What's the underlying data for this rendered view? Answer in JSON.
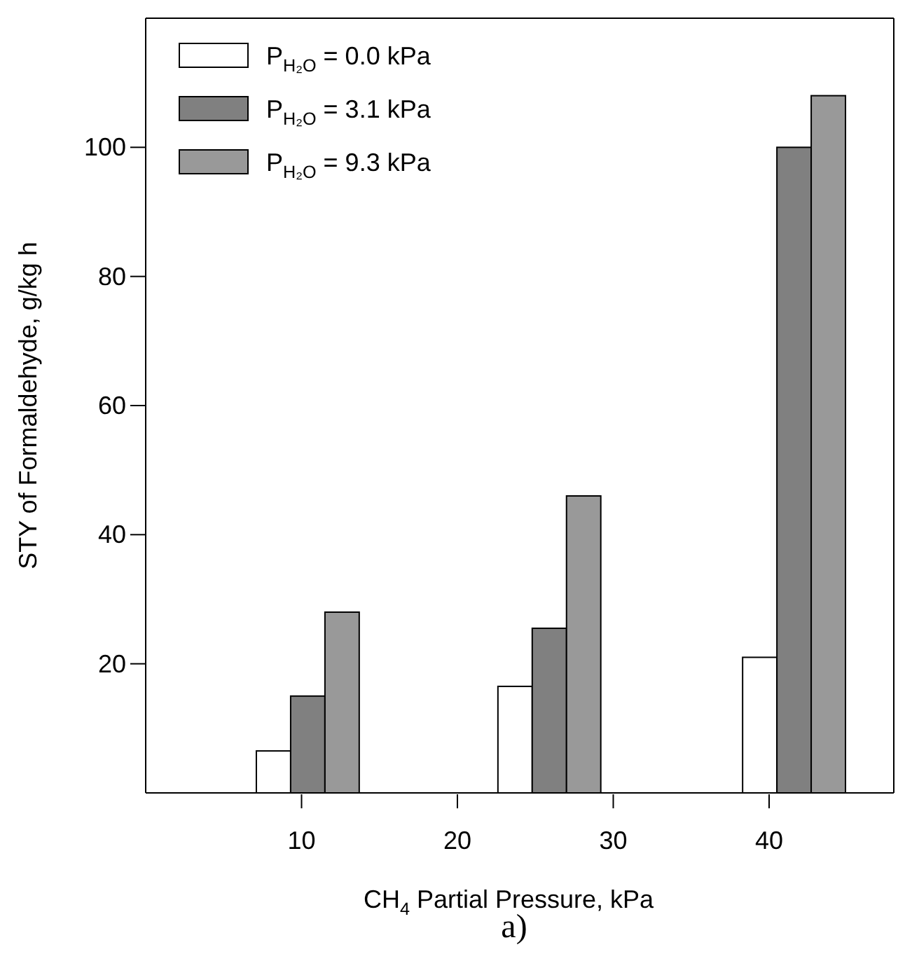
{
  "chart_data": {
    "type": "bar",
    "xlabel": "CH$_{4}$ Partial Pressure, kPa",
    "ylabel": "STY of Formaldehyde, g/kg h",
    "annotations": [
      "a)"
    ],
    "xlim": [
      0,
      48
    ],
    "xticks": [
      10,
      20,
      30,
      40
    ],
    "ylim": [
      0,
      120
    ],
    "yticks": [
      20,
      40,
      60,
      80,
      100
    ],
    "series": [
      {
        "name": "P$_{H₂O}$ = 0.0 kPa",
        "color": "#ffffff",
        "x": [
          8.2,
          23.7,
          39.4
        ],
        "values": [
          6.5,
          16.5,
          21
        ]
      },
      {
        "name": "P$_{H₂O}$ = 3.1 kPa",
        "color": "#808080",
        "x": [
          10.4,
          25.9,
          41.6
        ],
        "values": [
          15,
          25.5,
          100
        ]
      },
      {
        "name": "P$_{H₂O}$ = 9.3 kPa",
        "color": "#999999",
        "x": [
          12.6,
          28.1,
          43.8
        ],
        "values": [
          28,
          46,
          108
        ]
      }
    ],
    "legend": "top left",
    "grid": false
  }
}
